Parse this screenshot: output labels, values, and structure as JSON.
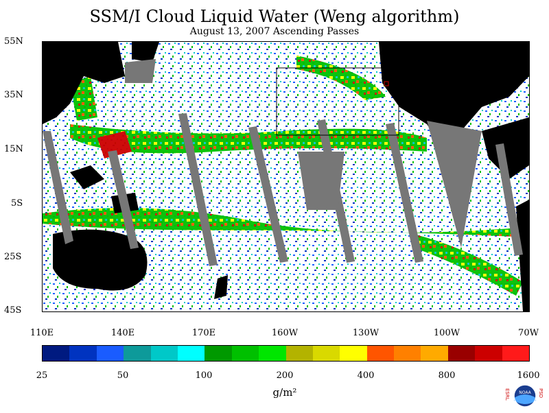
{
  "title": "SSM/I Cloud Liquid Water (Weng algorithm)",
  "subtitle": "August 13, 2007  Ascending Passes",
  "lat_labels": [
    "55N",
    "35N",
    "15N",
    "5S",
    "25S",
    "45S"
  ],
  "lon_labels": [
    "110E",
    "140E",
    "170E",
    "160W",
    "130W",
    "100W",
    "70W"
  ],
  "colorbar": {
    "colors": [
      "#001a80",
      "#0033c0",
      "#1a5cff",
      "#0d9a9a",
      "#00c8c8",
      "#00ffff",
      "#009900",
      "#00c000",
      "#00e600",
      "#b3b300",
      "#d9d900",
      "#ffff00",
      "#ff5500",
      "#ff8000",
      "#ffaa00",
      "#990000",
      "#cc0000",
      "#ff1a1a"
    ],
    "labels": [
      "25",
      "50",
      "100",
      "200",
      "400",
      "800",
      "1600"
    ]
  },
  "unit": "g/m²",
  "logo": {
    "left_text": "ESRL",
    "right_text": "PSD",
    "center_text": "NOAA"
  }
}
